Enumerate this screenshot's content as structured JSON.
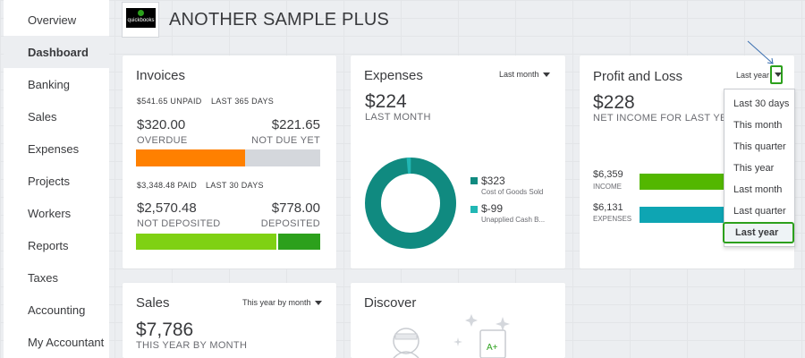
{
  "company": {
    "name": "ANOTHER SAMPLE PLUS",
    "logo_text": "quickbooks"
  },
  "sidebar": {
    "items": [
      {
        "label": "Overview"
      },
      {
        "label": "Dashboard"
      },
      {
        "label": "Banking"
      },
      {
        "label": "Sales"
      },
      {
        "label": "Expenses"
      },
      {
        "label": "Projects"
      },
      {
        "label": "Workers"
      },
      {
        "label": "Reports"
      },
      {
        "label": "Taxes"
      },
      {
        "label": "Accounting"
      },
      {
        "label": "My Accountant"
      }
    ],
    "active_index": 1
  },
  "invoices": {
    "title": "Invoices",
    "unpaid_amount": "$541.65 UNPAID",
    "unpaid_period": "LAST 365 DAYS",
    "overdue_value": "$320.00",
    "overdue_label": "OVERDUE",
    "not_due_value": "$221.65",
    "not_due_label": "NOT DUE YET",
    "unpaid_bar": {
      "overdue_fraction": 0.59,
      "overdue_color": "#ff8000",
      "not_due_color": "#d4d7dc"
    },
    "paid_amount": "$3,348.48 PAID",
    "paid_period": "LAST 30 DAYS",
    "not_deposited_value": "$2,570.48",
    "not_deposited_label": "NOT DEPOSITED",
    "deposited_value": "$778.00",
    "deposited_label": "DEPOSITED",
    "paid_bar": {
      "not_deposited_fraction": 0.77,
      "not_deposited_color": "#7fd113",
      "deposited_color": "#2ca01c"
    }
  },
  "expenses": {
    "title": "Expenses",
    "period_select": "Last month",
    "amount": "$224",
    "amount_label": "LAST MONTH",
    "legend": [
      {
        "value": "$323",
        "label": "Cost of Goods Sold",
        "color": "#108a80"
      },
      {
        "value": "$-99",
        "label": "Unapplied Cash B...",
        "color": "#21b7b4"
      }
    ],
    "donut_share": 0.985
  },
  "profit_loss": {
    "title": "Profit and Loss",
    "period_select": "Last year",
    "amount": "$228",
    "amount_label": "NET INCOME FOR LAST YEAR",
    "income_value": "$6,359",
    "income_label": "INCOME",
    "expenses_value": "$6,131",
    "expenses_label": "EXPENSES",
    "income_color": "#53b700",
    "expenses_color": "#0ea5b3",
    "dropdown_options": [
      "Last 30 days",
      "This month",
      "This quarter",
      "This year",
      "Last month",
      "Last quarter",
      "Last year"
    ],
    "selected_option": "Last year"
  },
  "sales": {
    "title": "Sales",
    "period_select": "This year by month",
    "amount": "$7,786",
    "amount_label": "THIS YEAR BY MONTH"
  },
  "discover": {
    "title": "Discover"
  }
}
